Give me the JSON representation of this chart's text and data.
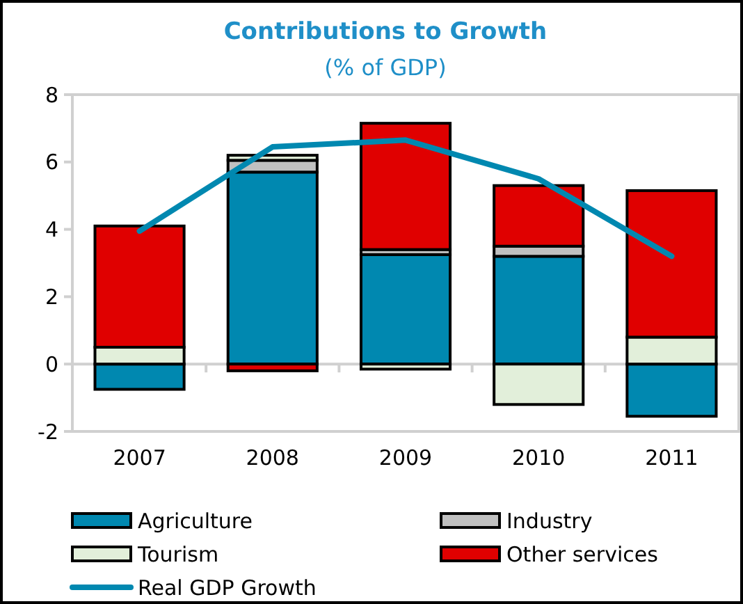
{
  "chart_data": {
    "type": "bar",
    "title": "Contributions to Growth",
    "subtitle": "(% of GDP)",
    "categories": [
      "2007",
      "2008",
      "2009",
      "2010",
      "2011"
    ],
    "stacked": true,
    "series": [
      {
        "name": "Agriculture",
        "color": "#0088b0",
        "values": [
          -0.75,
          5.7,
          3.25,
          3.2,
          -1.55
        ]
      },
      {
        "name": "Industry",
        "color": "#c0c0c0",
        "values": [
          0,
          0.35,
          0.15,
          0.3,
          0
        ]
      },
      {
        "name": "Tourism",
        "color": "#e2efda",
        "values": [
          0.5,
          0.15,
          -0.15,
          -1.2,
          0.8
        ]
      },
      {
        "name": "Other services",
        "color": "#e00000",
        "values": [
          3.6,
          -0.2,
          3.75,
          1.8,
          4.35
        ]
      },
      {
        "name": "Real GDP Growth",
        "type": "line",
        "color": "#0088b0",
        "values": [
          3.95,
          6.45,
          6.65,
          5.5,
          3.2
        ]
      }
    ],
    "ylim": [
      -2,
      8
    ],
    "yticks": [
      -2,
      0,
      2,
      4,
      6,
      8
    ],
    "legend": "bottom"
  }
}
